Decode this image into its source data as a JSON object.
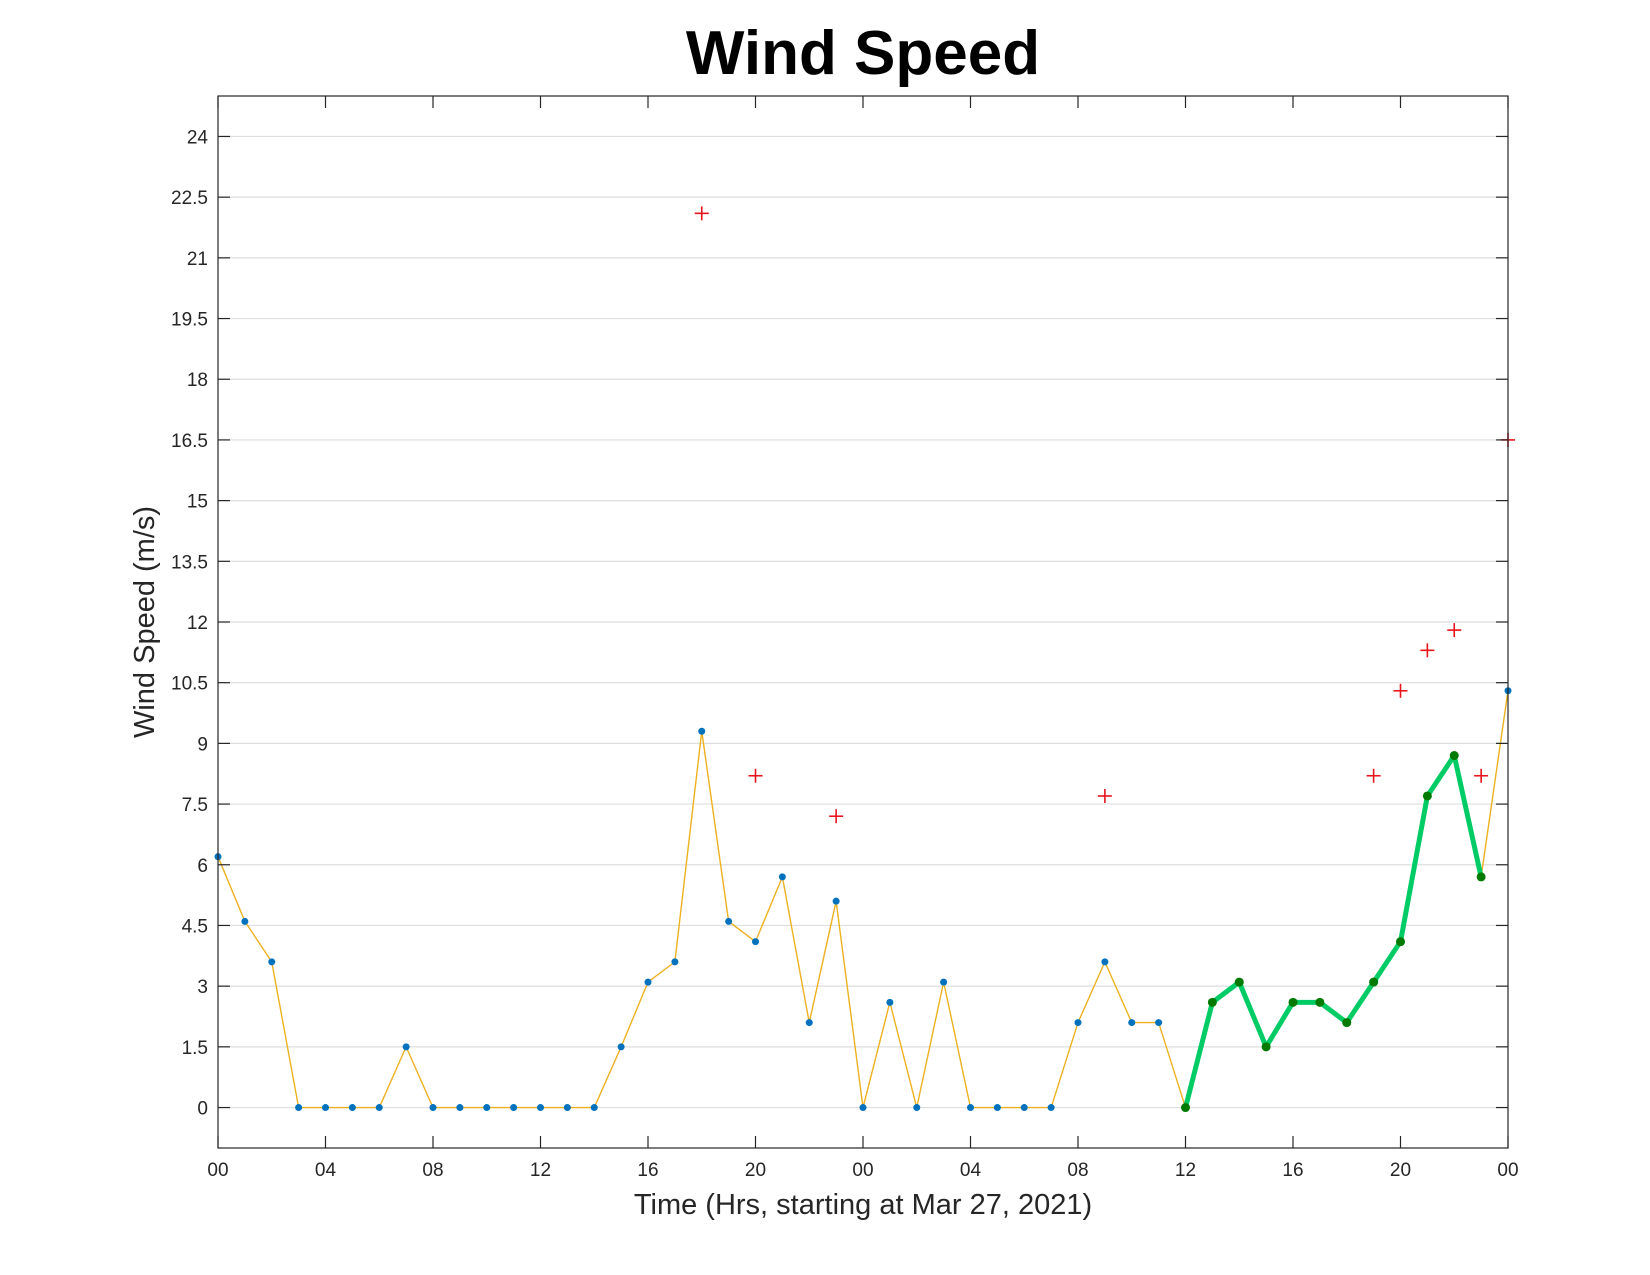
{
  "chart_data": {
    "type": "line",
    "title": "Wind Speed",
    "xlabel": "Time (Hrs, starting at Mar 27, 2021)",
    "ylabel": "Wind Speed (m/s)",
    "x_unit": "hours",
    "xlim": [
      0,
      48
    ],
    "ylim": [
      -1,
      25
    ],
    "grid": "horizontal",
    "x_ticks": [
      0,
      4,
      8,
      12,
      16,
      20,
      24,
      28,
      32,
      36,
      40,
      44,
      48
    ],
    "x_tick_labels": [
      "00",
      "04",
      "08",
      "12",
      "16",
      "20",
      "00",
      "04",
      "08",
      "12",
      "16",
      "20",
      "00"
    ],
    "y_ticks": [
      0,
      1.5,
      3,
      4.5,
      6,
      7.5,
      9,
      10.5,
      12,
      13.5,
      15,
      16.5,
      18,
      19.5,
      21,
      22.5,
      24
    ],
    "y_tick_labels": [
      "0",
      "1.5",
      "3",
      "4.5",
      "6",
      "7.5",
      "9",
      "10.5",
      "12",
      "13.5",
      "15",
      "16.5",
      "18",
      "19.5",
      "21",
      "22.5",
      "24"
    ],
    "series": [
      {
        "style": "line-with-markers",
        "line_color": "#EDB120",
        "marker_color": "#0072BD",
        "x": [
          0,
          1,
          2,
          3,
          4,
          5,
          6,
          7,
          8,
          9,
          10,
          11,
          12,
          13,
          14,
          15,
          16,
          17,
          18,
          19,
          20,
          21,
          22,
          23,
          24,
          25,
          26,
          27,
          28,
          29,
          30,
          31,
          32,
          33,
          34,
          35,
          36,
          37,
          38,
          39,
          40,
          41,
          42,
          43,
          44,
          45,
          46,
          47,
          48
        ],
        "values": [
          6.2,
          4.6,
          3.6,
          0,
          0,
          0,
          0,
          1.5,
          0,
          0,
          0,
          0,
          0,
          0,
          0,
          1.5,
          3.1,
          3.6,
          9.3,
          4.6,
          4.1,
          5.7,
          2.1,
          5.1,
          0,
          2.6,
          0,
          3.1,
          0,
          0,
          0,
          0,
          2.1,
          3.6,
          2.1,
          2.1,
          0,
          2.6,
          3.1,
          1.5,
          2.6,
          2.6,
          2.1,
          3.1,
          4.1,
          7.7,
          8.7,
          5.7,
          10.3
        ]
      },
      {
        "style": "thick-line-with-markers",
        "line_color": "#00CC66",
        "marker_color": "#007A00",
        "x": [
          36,
          37,
          38,
          39,
          40,
          41,
          42,
          43,
          44,
          45,
          46,
          47
        ],
        "values": [
          0,
          2.6,
          3.1,
          1.5,
          2.6,
          2.6,
          2.1,
          3.1,
          4.1,
          7.7,
          8.7,
          5.7
        ]
      },
      {
        "style": "plus-markers",
        "marker_color": "#E8141C",
        "x": [
          18,
          20,
          23,
          33,
          43,
          44,
          45,
          46,
          47,
          48
        ],
        "values": [
          22.1,
          8.2,
          7.2,
          7.7,
          8.2,
          10.3,
          11.3,
          11.8,
          8.2,
          16.5
        ]
      }
    ]
  }
}
